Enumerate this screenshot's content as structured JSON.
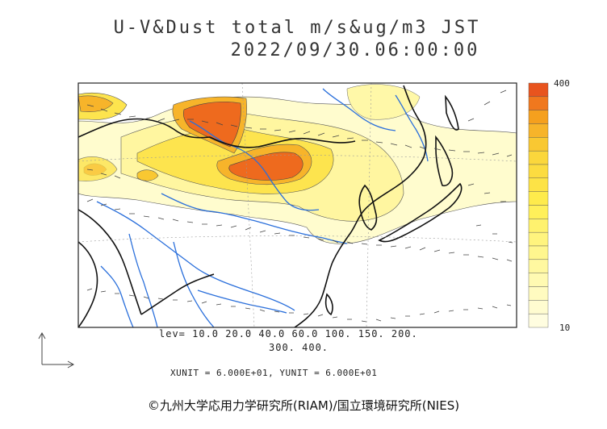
{
  "title_line1": "U-V&Dust total m/s&ug/m3 JST",
  "title_line2": "2022/09/30.06:00:00",
  "levels_line1": "lev= 10.0 20.0 40.0 60.0 100. 150. 200.",
  "levels_line2": "300. 400.",
  "units_line": "XUNIT = 6.000E+01, YUNIT = 6.000E+01",
  "colorbar": {
    "max_label": "400",
    "min_label": "10",
    "colors": [
      "#e8541e",
      "#f0781e",
      "#f5a01e",
      "#f7b42a",
      "#f9c832",
      "#fbd73c",
      "#fcdc40",
      "#fde346",
      "#feeb4c",
      "#fff05a",
      "#fff26e",
      "#fff47e",
      "#fff68e",
      "#fff8a0",
      "#fffab2",
      "#fffbc0",
      "#fffcd0",
      "#fffde0"
    ]
  },
  "credit": "©九州大学応用力学研究所(RIAM)/国立環境研究所(NIES)"
}
